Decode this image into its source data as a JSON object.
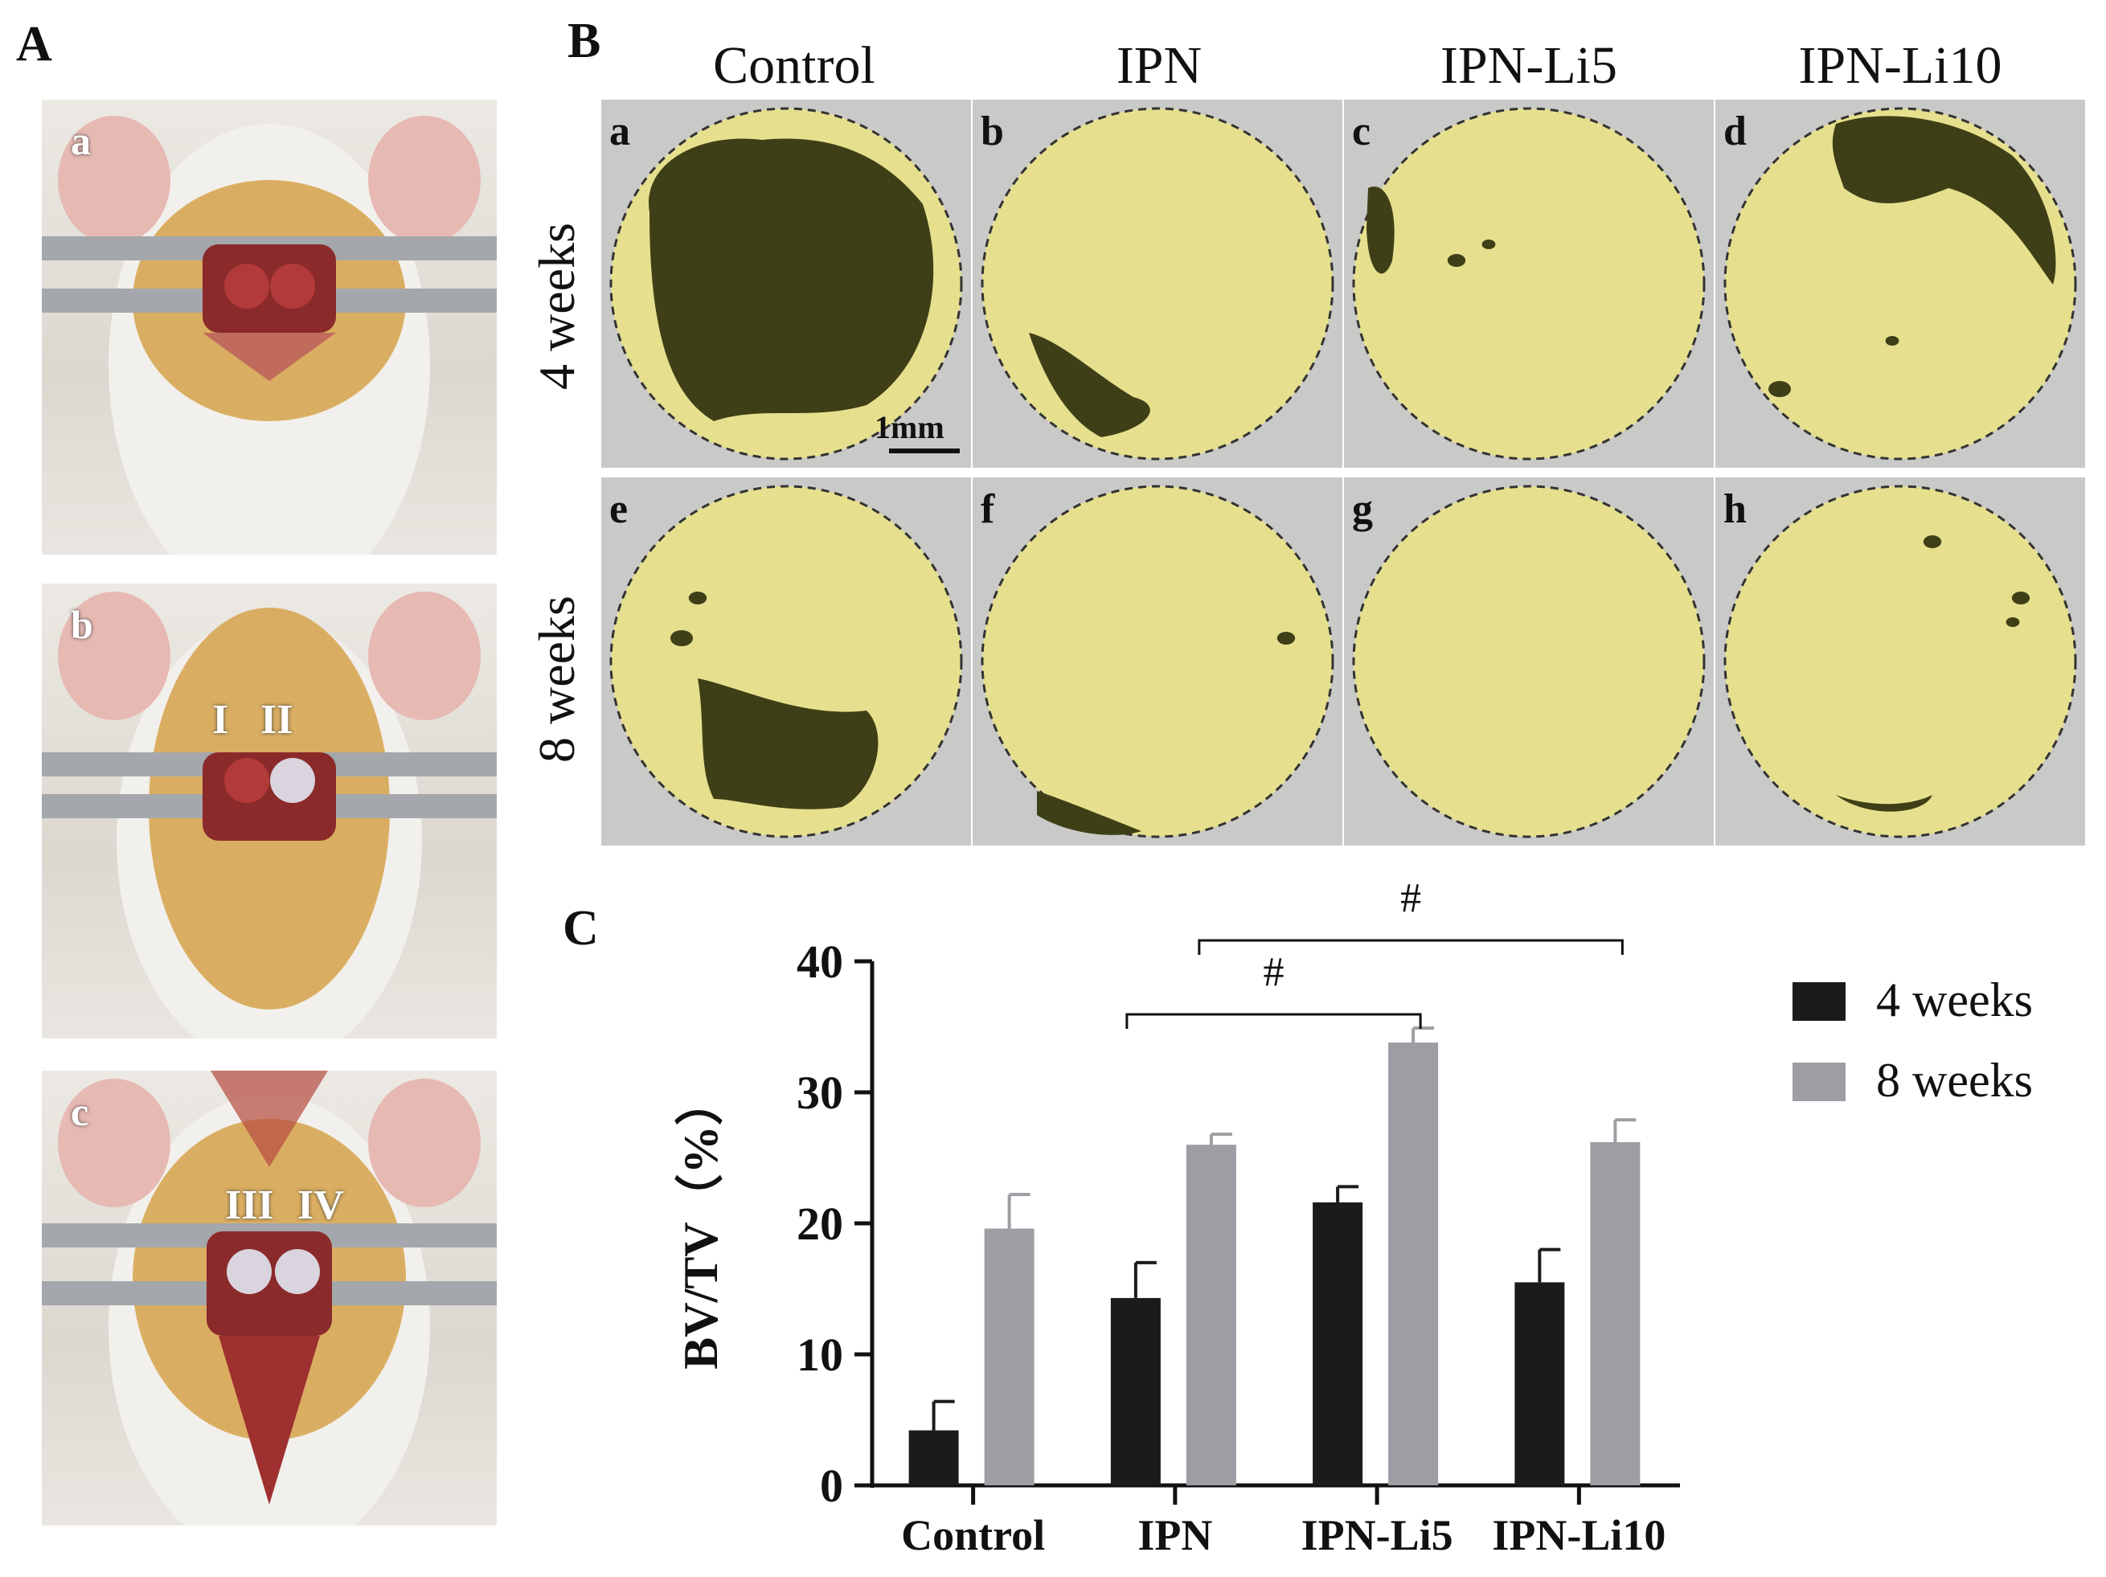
{
  "panels": {
    "A": {
      "letter": "A",
      "photos": [
        {
          "label": "a",
          "roman": []
        },
        {
          "label": "b",
          "roman": [
            "I",
            "II"
          ]
        },
        {
          "label": "c",
          "roman": [
            "III",
            "IV"
          ]
        }
      ]
    },
    "B": {
      "letter": "B",
      "columns": [
        "Control",
        "IPN",
        "IPN-Li5",
        "IPN-Li10"
      ],
      "rows": [
        "4 weeks",
        "8 weeks"
      ],
      "cells": [
        "a",
        "b",
        "c",
        "d",
        "e",
        "f",
        "g",
        "h"
      ],
      "scale_bar": "1mm",
      "colors": {
        "new_bone": "#e6e08e",
        "defect": "#3f3f17",
        "background": "#c9c9c7"
      }
    },
    "C": {
      "letter": "C"
    }
  },
  "chart_data": {
    "type": "bar",
    "categories": [
      "Control",
      "IPN",
      "IPN-Li5",
      "IPN-Li10"
    ],
    "series": [
      {
        "name": "4 weeks",
        "values": [
          4.2,
          14.3,
          21.6,
          15.5
        ],
        "errors": [
          2.2,
          2.7,
          1.2,
          2.5
        ],
        "color": "#1c1a1d"
      },
      {
        "name": "8 weeks",
        "values": [
          19.6,
          26.0,
          33.8,
          26.2
        ],
        "errors": [
          2.6,
          0.8,
          1.1,
          1.7
        ],
        "color": "#9d9ea3"
      }
    ],
    "ylabel": "BV/TV（%）",
    "ylim": [
      0,
      40
    ],
    "yticks": [
      0,
      10,
      20,
      30,
      40
    ],
    "grid": false,
    "legend_position": "right",
    "annotations": [
      {
        "text": "#",
        "from": "IPN",
        "to": "IPN-Li5"
      },
      {
        "text": "#",
        "from": "IPN",
        "to": "IPN-Li10"
      }
    ]
  }
}
